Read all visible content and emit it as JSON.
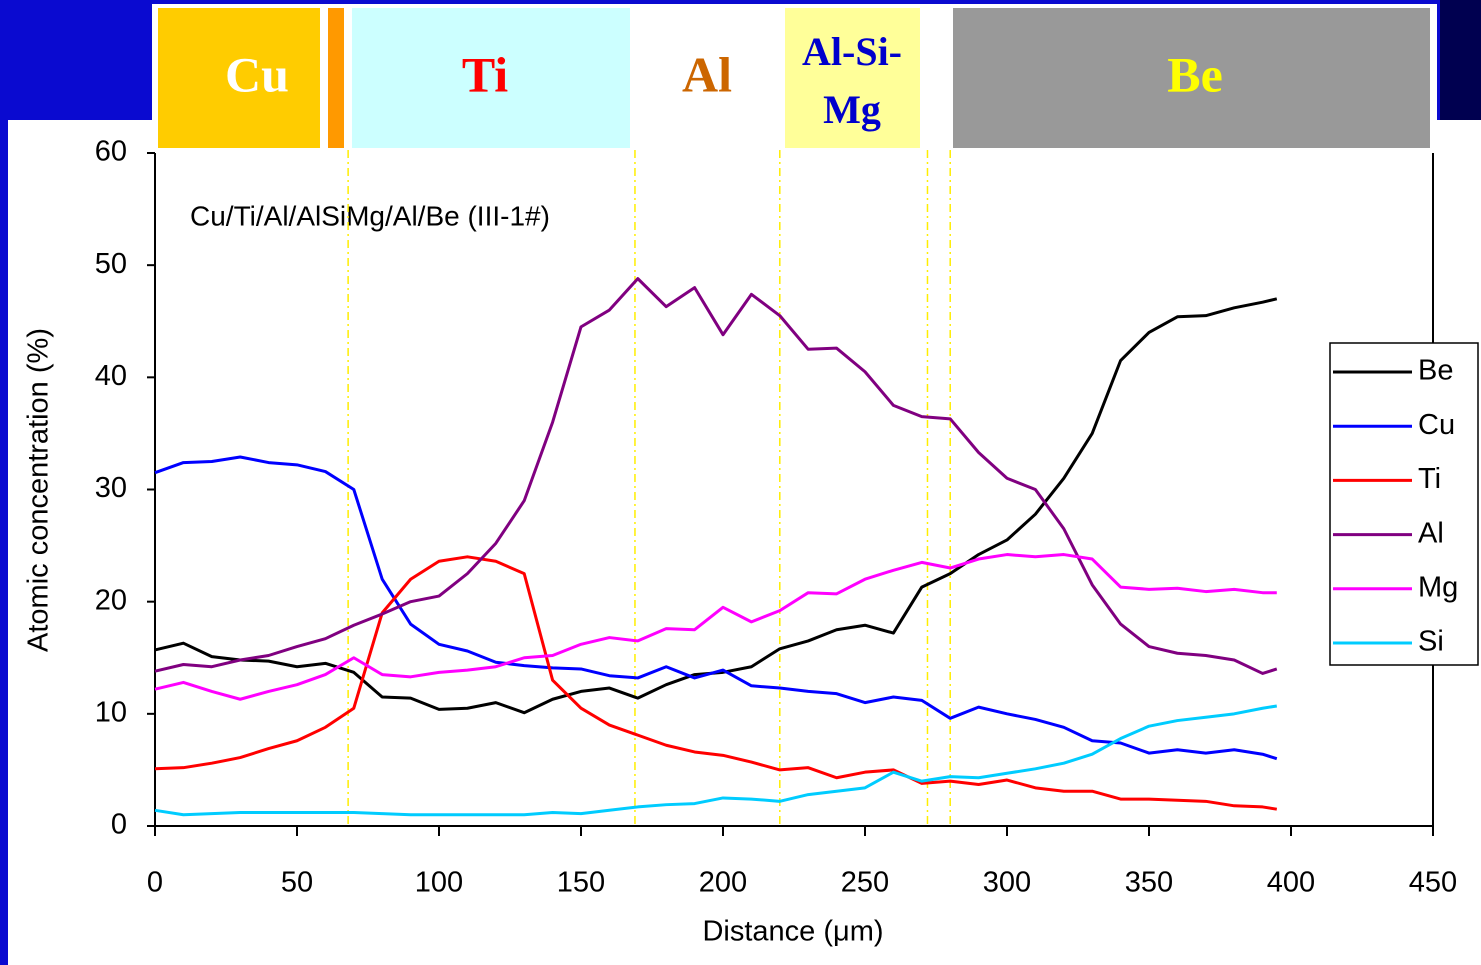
{
  "chart_data": {
    "type": "line",
    "annotation": "Cu/Ti/Al/AlSiMg/Al/Be (III-1#)",
    "x_label": "Distance (μm)",
    "y_label": "Atomic concentration (%)",
    "layers": [
      {
        "lines": [
          "Cu"
        ]
      },
      {
        "lines": [
          "Ti"
        ]
      },
      {
        "lines": [
          "Al"
        ]
      },
      {
        "lines": [
          "Al-Si-",
          "Mg"
        ]
      },
      {
        "lines": [
          "Be"
        ]
      }
    ],
    "boundaries": [
      68,
      169,
      220,
      272,
      280
    ],
    "xlim": [
      0,
      450
    ],
    "xticks": [
      0,
      50,
      100,
      150,
      200,
      250,
      300,
      350,
      400,
      450
    ],
    "ylim": [
      0,
      60
    ],
    "yticks": [
      0,
      10,
      20,
      30,
      40,
      50,
      60
    ],
    "grid": false,
    "legend": "right",
    "x": [
      0,
      10,
      20,
      30,
      40,
      50,
      60,
      70,
      80,
      90,
      100,
      110,
      120,
      130,
      140,
      150,
      160,
      170,
      180,
      190,
      200,
      210,
      220,
      230,
      240,
      250,
      260,
      270,
      280,
      290,
      300,
      310,
      320,
      330,
      340,
      350,
      360,
      370,
      380,
      390,
      395
    ],
    "series": [
      {
        "name": "Be",
        "color": "#000000",
        "values": [
          15.7,
          16.3,
          15.1,
          14.8,
          14.7,
          14.2,
          14.5,
          13.7,
          11.5,
          11.4,
          10.4,
          10.5,
          11.0,
          10.1,
          11.3,
          12.0,
          12.3,
          11.4,
          12.6,
          13.5,
          13.7,
          14.2,
          15.8,
          16.5,
          17.5,
          17.9,
          17.2,
          21.3,
          22.5,
          24.2,
          25.5,
          27.8,
          31.0,
          35.0,
          41.5,
          44.0,
          45.4,
          45.5,
          46.2,
          46.7,
          47.0
        ]
      },
      {
        "name": "Cu",
        "color": "#0000ff",
        "values": [
          31.5,
          32.4,
          32.5,
          32.9,
          32.4,
          32.2,
          31.6,
          30.0,
          22.0,
          18.0,
          16.2,
          15.6,
          14.6,
          14.3,
          14.1,
          14.0,
          13.4,
          13.2,
          14.2,
          13.2,
          13.9,
          12.5,
          12.3,
          12.0,
          11.8,
          11.0,
          11.5,
          11.2,
          9.6,
          10.6,
          10.0,
          9.5,
          8.8,
          7.6,
          7.4,
          6.5,
          6.8,
          6.5,
          6.8,
          6.4,
          6.0
        ]
      },
      {
        "name": "Ti",
        "color": "#ff0000",
        "values": [
          5.1,
          5.2,
          5.6,
          6.1,
          6.9,
          7.6,
          8.8,
          10.5,
          19.0,
          22.0,
          23.6,
          24.0,
          23.6,
          22.5,
          13.0,
          10.5,
          9.0,
          8.1,
          7.2,
          6.6,
          6.3,
          5.7,
          5.0,
          5.2,
          4.3,
          4.8,
          5.0,
          3.8,
          4.0,
          3.7,
          4.1,
          3.4,
          3.1,
          3.1,
          2.4,
          2.4,
          2.3,
          2.2,
          1.8,
          1.7,
          1.5
        ]
      },
      {
        "name": "Al",
        "color": "#800080",
        "values": [
          13.8,
          14.4,
          14.2,
          14.8,
          15.2,
          16.0,
          16.7,
          17.9,
          18.9,
          20.0,
          20.5,
          22.5,
          25.2,
          29.0,
          36.0,
          44.5,
          46.0,
          48.8,
          46.3,
          48.0,
          43.8,
          47.4,
          45.5,
          42.5,
          42.6,
          40.5,
          37.5,
          36.5,
          36.3,
          33.3,
          31.0,
          30.0,
          26.5,
          21.5,
          18.0,
          16.0,
          15.4,
          15.2,
          14.8,
          13.6,
          14.0
        ]
      },
      {
        "name": "Mg",
        "color": "#ff00ff",
        "values": [
          12.2,
          12.8,
          12.0,
          11.3,
          12.0,
          12.6,
          13.5,
          15.0,
          13.5,
          13.3,
          13.7,
          13.9,
          14.2,
          15.0,
          15.2,
          16.2,
          16.8,
          16.5,
          17.6,
          17.5,
          19.5,
          18.2,
          19.2,
          20.8,
          20.7,
          22.0,
          22.8,
          23.5,
          23.0,
          23.8,
          24.2,
          24.0,
          24.2,
          23.8,
          21.3,
          21.1,
          21.2,
          20.9,
          21.1,
          20.8,
          20.8
        ]
      },
      {
        "name": "Si",
        "color": "#00ccff",
        "values": [
          1.4,
          1.0,
          1.1,
          1.2,
          1.2,
          1.2,
          1.2,
          1.2,
          1.1,
          1.0,
          1.0,
          1.0,
          1.0,
          1.0,
          1.2,
          1.1,
          1.4,
          1.7,
          1.9,
          2.0,
          2.5,
          2.4,
          2.2,
          2.8,
          3.1,
          3.4,
          4.8,
          4.0,
          4.4,
          4.3,
          4.7,
          5.1,
          5.6,
          6.4,
          7.8,
          8.9,
          9.4,
          9.7,
          10.0,
          10.5,
          10.7
        ]
      }
    ]
  }
}
